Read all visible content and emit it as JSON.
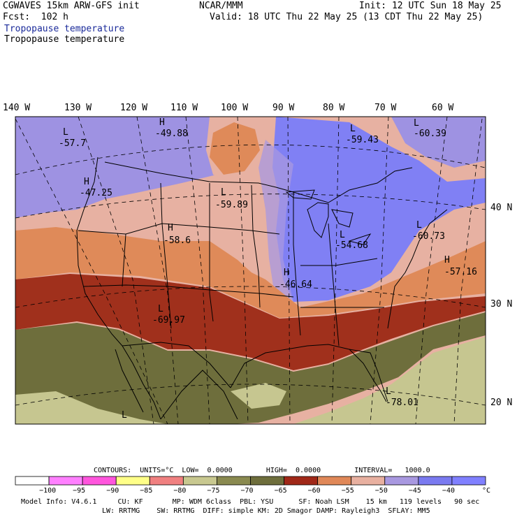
{
  "header": {
    "model_title": "CGWAVES 15km ARW-GFS init",
    "forecast": "Fcst:  102 h",
    "center": "NCAR/MMM",
    "init": "Init: 12 UTC Sun 18 May 25",
    "valid": "Valid: 18 UTC Thu 22 May 25 (13 CDT Thu 22 May 25)",
    "field_colored": "Tropopause temperature",
    "field_plain": "Tropopause temperature"
  },
  "map": {
    "lon_labels": [
      "140 W",
      "130 W",
      "120 W",
      "110 W",
      "100 W",
      "90 W",
      "80 W",
      "70 W",
      "60 W"
    ],
    "lat_labels": [
      "40 N",
      "30 N",
      "20 N"
    ],
    "centers": [
      {
        "type": "L",
        "value": "-57.7"
      },
      {
        "type": "H",
        "value": "-49.88"
      },
      {
        "type": "L",
        "value": "-59.43"
      },
      {
        "type": "L",
        "value": "-60.39"
      },
      {
        "type": "H",
        "value": "-47.25"
      },
      {
        "type": "L",
        "value": "-59.89"
      },
      {
        "type": "H",
        "value": "-58.6"
      },
      {
        "type": "L",
        "value": "-54.68"
      },
      {
        "type": "L",
        "value": "-60.73"
      },
      {
        "type": "H",
        "value": "-46.64"
      },
      {
        "type": "H",
        "value": "-57.16"
      },
      {
        "type": "L",
        "value": "-69.97"
      },
      {
        "type": "L",
        "value": "-78.01"
      },
      {
        "type": "L",
        "value": ""
      }
    ]
  },
  "contours": {
    "line": "CONTOURS:  UNITS=°C  LOW=  0.0000        HIGH=  0.0000        INTERVAL=   1000.0"
  },
  "colorbar": {
    "colors": [
      "#ffffff",
      "#ff80ff",
      "#ff55dd",
      "#ffff88",
      "#f08080",
      "#c8c890",
      "#8a8a50",
      "#6e6e3c",
      "#a02818",
      "#e08858",
      "#e8b0a0",
      "#a898e0",
      "#7a7af0",
      "#8080ff"
    ],
    "labels": [
      "-100",
      "-95",
      "-90",
      "-85",
      "-80",
      "-75",
      "-70",
      "-65",
      "-60",
      "-55",
      "-50",
      "-45",
      "-40"
    ],
    "unit": "°C"
  },
  "footer": {
    "line1": "Model Info: V4.6.1     CU: KF       MP: WDM 6class  PBL: YSU      SF: Noah LSM    15 km   119 levels   90 sec",
    "line2": "LW: RRTMG    SW: RRTMG  DIFF: simple KM: 2D Smagor DAMP: Rayleigh3  SFLAY: MM5"
  },
  "colors": {
    "purple": "#9e92e2",
    "blue": "#7878f0",
    "pink": "#e7b1a2",
    "orange": "#df8a59",
    "red": "#a0301c",
    "olive_dark": "#6e6e3c",
    "olive_light": "#c6c690"
  }
}
